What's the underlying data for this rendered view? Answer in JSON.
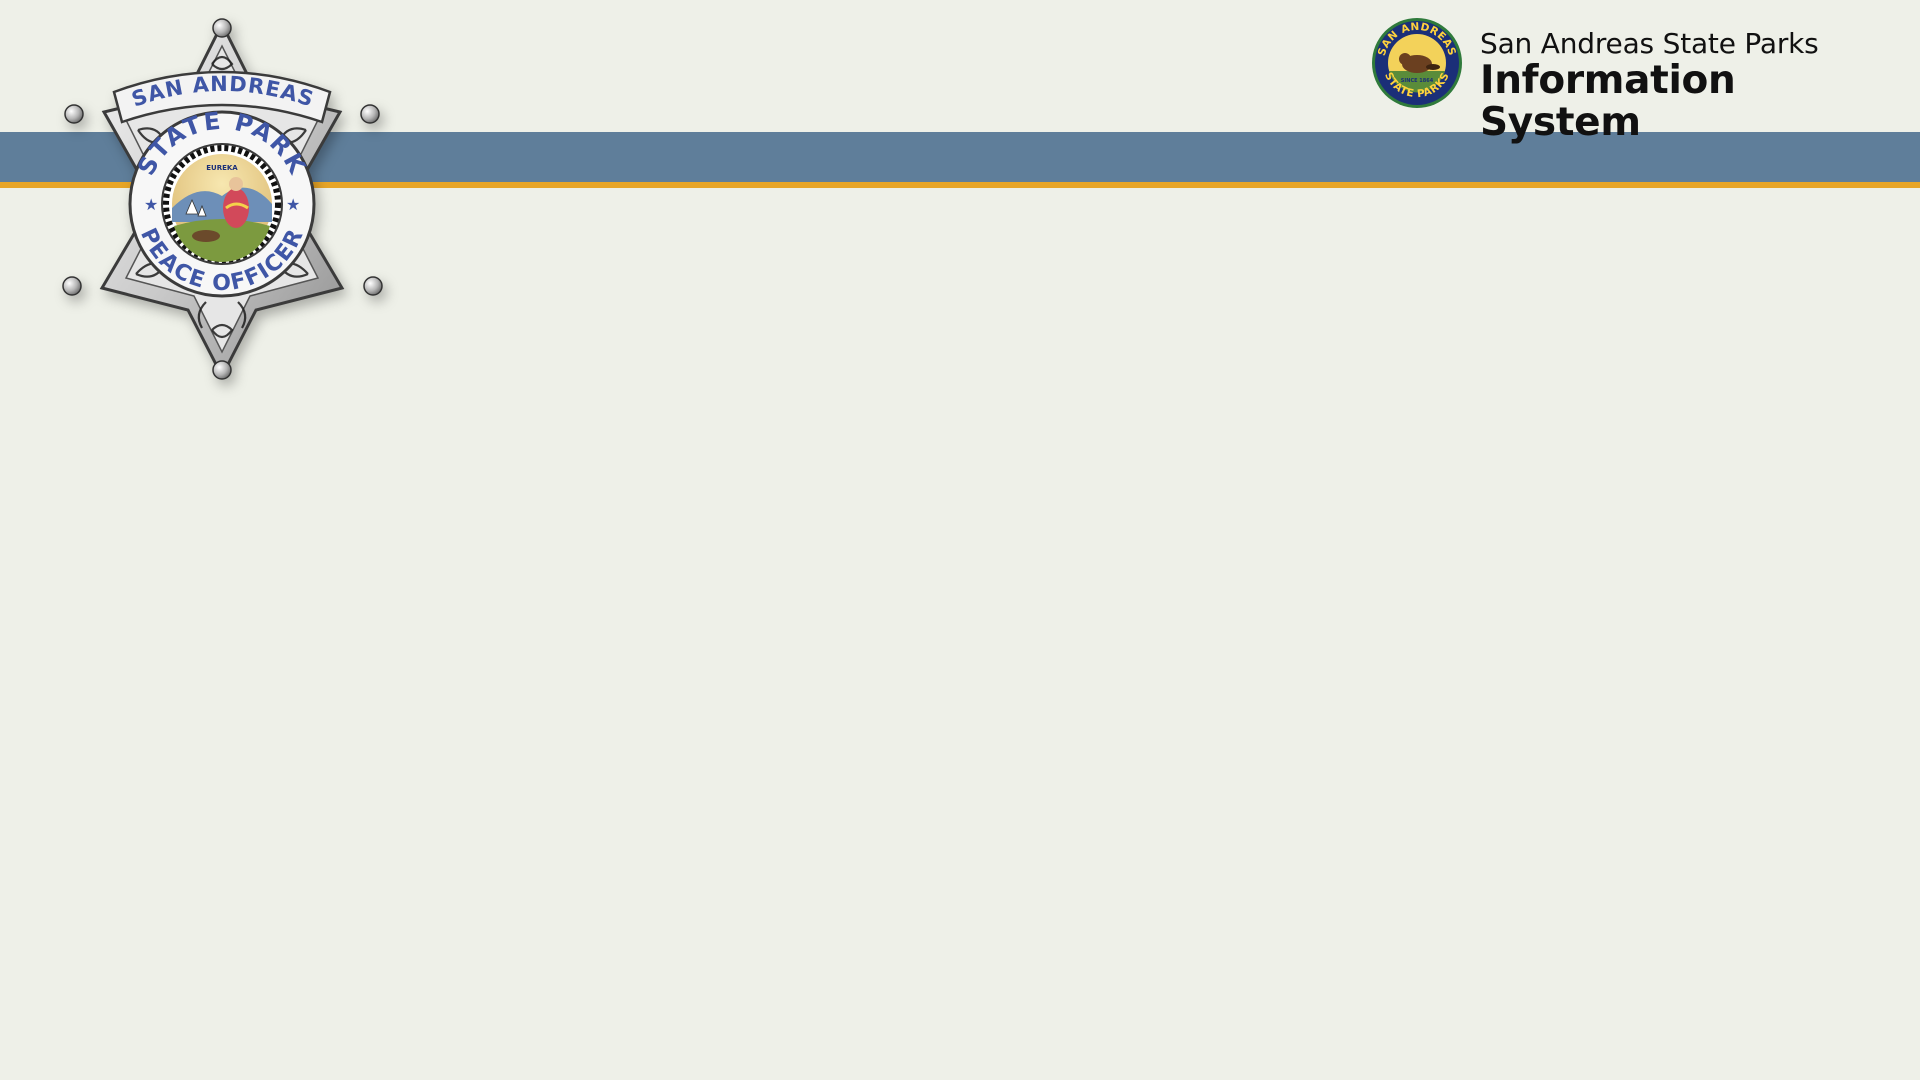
{
  "badge": {
    "top_text": "SAN ANDREAS",
    "ring_top": "STATE PARK",
    "ring_bottom": "PEACE OFFICER",
    "motto": "EUREKA"
  },
  "brand": {
    "line1": "San Andreas State Parks",
    "line2": "Information System",
    "seal": {
      "top": "SAN ANDREAS",
      "bottom": "STATE PARKS",
      "center": "SINCE 1864"
    }
  },
  "colors": {
    "background": "#eef0e8",
    "header_band": "#5f7e9a",
    "header_stripe": "#e7a527",
    "badge_lettering": "#3f56a6",
    "seal_navy": "#1b2f78",
    "seal_green": "#2f7a3b"
  }
}
